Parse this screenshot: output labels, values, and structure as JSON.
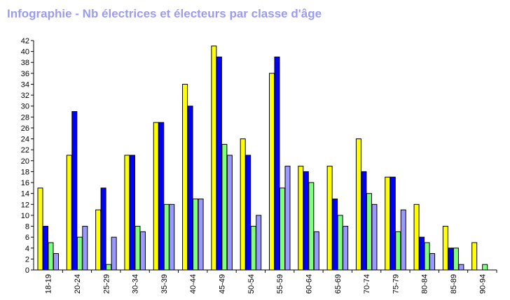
{
  "chart_data": {
    "type": "bar",
    "title": "Infographie - Nb électrices et électeurs par classe d'âge",
    "categories": [
      "18-19",
      "20-24",
      "25-29",
      "30-34",
      "35-39",
      "40-44",
      "45-49",
      "50-54",
      "55-59",
      "60-64",
      "65-69",
      "70-74",
      "75-79",
      "80-84",
      "85-89",
      "90-94"
    ],
    "series": [
      {
        "color": "#ffff00",
        "values": [
          15,
          21,
          11,
          21,
          27,
          34,
          41,
          24,
          36,
          19,
          19,
          24,
          17,
          12,
          8,
          5
        ]
      },
      {
        "color": "#0000ff",
        "values": [
          8,
          29,
          15,
          21,
          27,
          30,
          39,
          21,
          39,
          18,
          13,
          18,
          17,
          6,
          4,
          0
        ]
      },
      {
        "color": "#80ff80",
        "values": [
          5,
          6,
          1,
          8,
          12,
          13,
          23,
          8,
          15,
          16,
          10,
          14,
          7,
          5,
          4,
          1
        ]
      },
      {
        "color": "#9999ff",
        "values": [
          3,
          8,
          6,
          7,
          12,
          13,
          21,
          10,
          19,
          7,
          8,
          12,
          11,
          3,
          1,
          0
        ]
      }
    ],
    "ylim": [
      0,
      42
    ],
    "yticks": [
      0,
      2,
      4,
      6,
      8,
      10,
      12,
      14,
      16,
      18,
      20,
      22,
      24,
      26,
      28,
      30,
      32,
      34,
      36,
      38,
      40,
      42
    ],
    "xlabel": "",
    "ylabel": "",
    "grid": false,
    "legend": "none"
  }
}
